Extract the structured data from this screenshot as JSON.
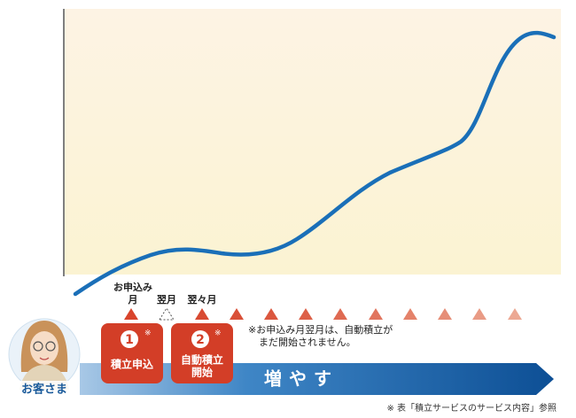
{
  "timeline": {
    "apply": [
      "お申込み",
      "月"
    ],
    "next": "翌月",
    "after_next": "翌々月"
  },
  "note": [
    "※お申込み月翌月は、自動積立が",
    "まだ開始されません。"
  ],
  "steps": [
    {
      "number": "1",
      "mark": "※",
      "label": [
        "積立申込"
      ]
    },
    {
      "number": "2",
      "mark": "※",
      "label": [
        "自動積立",
        "開始"
      ]
    }
  ],
  "banner": "増やす",
  "customer": "お客さま",
  "footnote": "※ 表「積立サービスのサービス内容」参照"
}
